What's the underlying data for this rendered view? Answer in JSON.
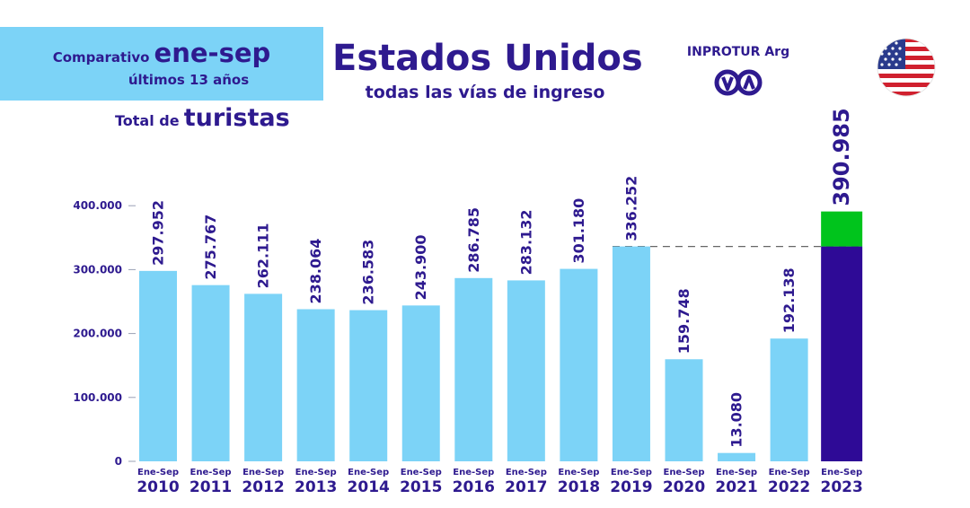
{
  "header": {
    "comparativo_small": "Comparativo",
    "comparativo_big": "ene-sep",
    "ultimos": "últimos 13 años",
    "total_small": "Total de",
    "total_big": "turistas",
    "title": "Estados Unidos",
    "subtitle": "todas las vías de ingreso",
    "brand": "INPROTUR Arg"
  },
  "colors": {
    "bar": "#7cd3f7",
    "highlight_base": "#2e0a96",
    "highlight_growth": "#00c41c",
    "text": "#2e1a8f"
  },
  "icons": {
    "logo": "inprotur-logo-icon",
    "flag": "usa-flag-icon"
  },
  "chart_data": {
    "type": "bar",
    "period_label": "Ene-Sep",
    "categories": [
      "2010",
      "2011",
      "2012",
      "2013",
      "2014",
      "2015",
      "2016",
      "2017",
      "2018",
      "2019",
      "2020",
      "2021",
      "2022",
      "2023"
    ],
    "values": [
      297952,
      275767,
      262111,
      238064,
      236583,
      243900,
      286785,
      283132,
      301180,
      336252,
      159748,
      13080,
      192138,
      390985
    ],
    "value_labels": [
      "297.952",
      "275.767",
      "262.111",
      "238.064",
      "236.583",
      "243.900",
      "286.785",
      "283.132",
      "301.180",
      "336.252",
      "159.748",
      "13.080",
      "192.138",
      "390.985"
    ],
    "yticks": [
      0,
      100000,
      200000,
      300000,
      400000
    ],
    "ytick_labels": [
      "0",
      "100.000",
      "200.000",
      "300.000",
      "400.000"
    ],
    "highlight_index": 13,
    "reference_index": 9,
    "reference_line": "dashed",
    "grid": false,
    "legend": "none"
  }
}
